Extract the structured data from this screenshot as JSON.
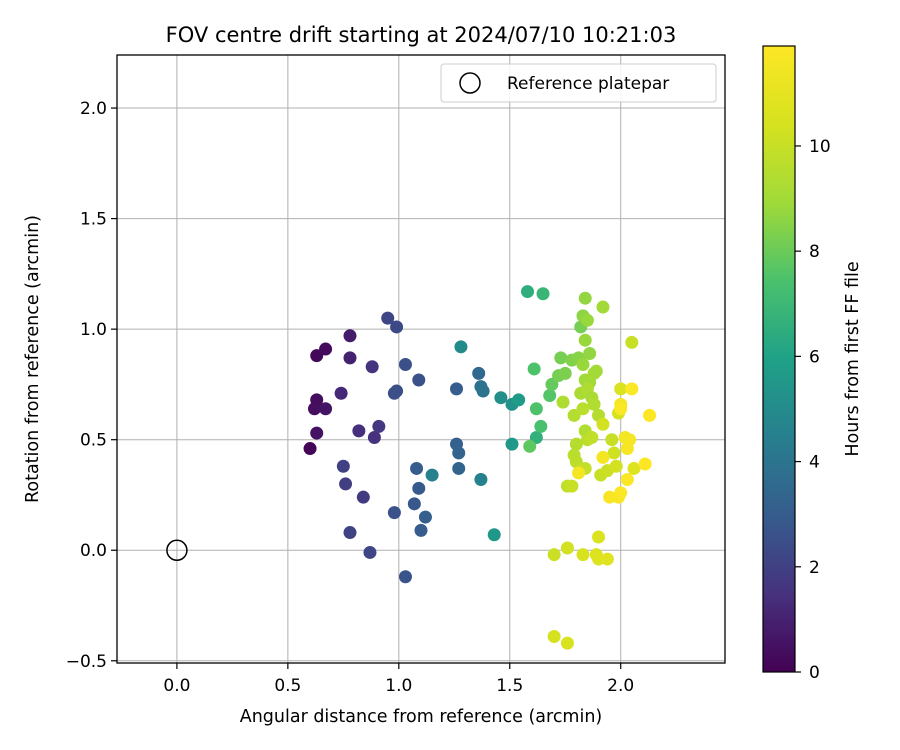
{
  "chart_data": {
    "type": "scatter",
    "title": "FOV centre drift starting at 2024/07/10 10:21:03",
    "xlabel": "Angular distance from reference (arcmin)",
    "ylabel": "Rotation from reference (arcmin)",
    "xlim": [
      -0.27,
      2.47
    ],
    "ylim": [
      -0.51,
      2.24
    ],
    "xticks": [
      0.0,
      0.5,
      1.0,
      1.5,
      2.0
    ],
    "xtick_labels": [
      "0.0",
      "0.5",
      "1.0",
      "1.5",
      "2.0"
    ],
    "yticks": [
      -0.5,
      0.0,
      0.5,
      1.0,
      1.5,
      2.0
    ],
    "ytick_labels": [
      "−0.5",
      "0.0",
      "0.5",
      "1.0",
      "1.5",
      "2.0"
    ],
    "grid": true,
    "legend": {
      "placement": "top-right",
      "entries": [
        "Reference platepar"
      ]
    },
    "reference_point": {
      "x": 0.0,
      "y": 0.0,
      "label": "Reference platepar"
    },
    "colorbar": {
      "label": "Hours from first FF file",
      "range": [
        0,
        11.9
      ],
      "ticks": [
        0,
        2,
        4,
        6,
        8,
        10
      ],
      "tick_labels": [
        "0",
        "2",
        "4",
        "6",
        "8",
        "10"
      ],
      "colormap": "viridis"
    },
    "points": [
      [
        0.6,
        0.46,
        0.1
      ],
      [
        0.63,
        0.88,
        0.2
      ],
      [
        0.67,
        0.91,
        0.3
      ],
      [
        0.63,
        0.68,
        0.35
      ],
      [
        0.62,
        0.64,
        0.4
      ],
      [
        0.63,
        0.53,
        0.5
      ],
      [
        0.67,
        0.64,
        0.6
      ],
      [
        0.78,
        0.97,
        0.8
      ],
      [
        0.78,
        0.87,
        1.0
      ],
      [
        0.74,
        0.71,
        1.2
      ],
      [
        0.82,
        0.54,
        1.4
      ],
      [
        0.89,
        0.51,
        1.5
      ],
      [
        0.88,
        0.83,
        1.6
      ],
      [
        0.91,
        0.56,
        1.7
      ],
      [
        0.84,
        0.24,
        1.8
      ],
      [
        0.76,
        0.3,
        1.9
      ],
      [
        0.75,
        0.38,
        2.0
      ],
      [
        0.78,
        0.08,
        2.1
      ],
      [
        0.87,
        -0.01,
        2.2
      ],
      [
        0.95,
        1.05,
        2.2
      ],
      [
        0.99,
        1.01,
        2.3
      ],
      [
        0.99,
        0.72,
        2.4
      ],
      [
        0.98,
        0.71,
        2.5
      ],
      [
        1.03,
        0.84,
        2.5
      ],
      [
        1.09,
        0.77,
        2.6
      ],
      [
        0.98,
        0.17,
        2.6
      ],
      [
        1.03,
        -0.12,
        2.7
      ],
      [
        1.07,
        0.21,
        2.8
      ],
      [
        1.09,
        0.28,
        2.9
      ],
      [
        1.08,
        0.37,
        3.0
      ],
      [
        1.1,
        0.09,
        3.0
      ],
      [
        1.12,
        0.15,
        3.1
      ],
      [
        1.15,
        0.34,
        4.5
      ],
      [
        1.26,
        0.73,
        3.0
      ],
      [
        1.26,
        0.48,
        3.2
      ],
      [
        1.27,
        0.44,
        3.3
      ],
      [
        1.27,
        0.37,
        3.3
      ],
      [
        1.36,
        0.8,
        3.5
      ],
      [
        1.37,
        0.74,
        3.9
      ],
      [
        1.38,
        0.72,
        4.0
      ],
      [
        1.37,
        0.32,
        4.5
      ],
      [
        1.28,
        0.92,
        5.0
      ],
      [
        1.43,
        0.07,
        5.5
      ],
      [
        1.46,
        0.69,
        5.1
      ],
      [
        1.51,
        0.66,
        5.3
      ],
      [
        1.51,
        0.48,
        5.6
      ],
      [
        1.54,
        0.68,
        5.7
      ],
      [
        1.58,
        1.17,
        6.5
      ],
      [
        1.65,
        1.16,
        6.9
      ],
      [
        1.62,
        0.51,
        6.6
      ],
      [
        1.61,
        0.82,
        7.5
      ],
      [
        1.62,
        0.64,
        7.5
      ],
      [
        1.64,
        0.56,
        7.4
      ],
      [
        1.59,
        0.47,
        7.8
      ],
      [
        1.68,
        0.7,
        7.6
      ],
      [
        1.69,
        0.75,
        7.9
      ],
      [
        1.72,
        0.79,
        8.2
      ],
      [
        1.73,
        0.87,
        8.2
      ],
      [
        1.75,
        0.8,
        8.3
      ],
      [
        1.78,
        0.86,
        8.4
      ],
      [
        1.81,
        0.87,
        8.5
      ],
      [
        1.82,
        1.01,
        8.2
      ],
      [
        1.84,
        1.14,
        8.7
      ],
      [
        1.83,
        1.06,
        8.6
      ],
      [
        1.85,
        1.04,
        8.8
      ],
      [
        1.84,
        0.95,
        8.8
      ],
      [
        1.86,
        0.89,
        8.7
      ],
      [
        1.83,
        0.84,
        8.8
      ],
      [
        1.84,
        0.77,
        8.9
      ],
      [
        1.86,
        0.76,
        9.0
      ],
      [
        1.88,
        0.8,
        9.1
      ],
      [
        1.89,
        0.81,
        9.0
      ],
      [
        1.82,
        0.71,
        9.2
      ],
      [
        1.85,
        0.73,
        9.3
      ],
      [
        1.87,
        0.69,
        9.2
      ],
      [
        1.88,
        0.66,
        9.4
      ],
      [
        1.9,
        0.61,
        9.5
      ],
      [
        1.92,
        1.1,
        9.0
      ],
      [
        1.74,
        0.67,
        9.3
      ],
      [
        1.79,
        0.61,
        9.5
      ],
      [
        1.83,
        0.64,
        9.6
      ],
      [
        1.84,
        0.54,
        9.4
      ],
      [
        1.85,
        0.5,
        9.7
      ],
      [
        1.87,
        0.51,
        9.8
      ],
      [
        1.8,
        0.48,
        9.5
      ],
      [
        1.79,
        0.43,
        9.6
      ],
      [
        1.8,
        0.4,
        9.7
      ],
      [
        1.84,
        0.37,
        9.9
      ],
      [
        1.91,
        0.34,
        10.0
      ],
      [
        1.94,
        0.36,
        10.1
      ],
      [
        1.96,
        0.5,
        10.0
      ],
      [
        1.97,
        0.44,
        10.2
      ],
      [
        1.98,
        0.38,
        10.3
      ],
      [
        1.99,
        0.62,
        10.4
      ],
      [
        1.92,
        0.57,
        10.3
      ],
      [
        1.76,
        0.29,
        9.8
      ],
      [
        1.78,
        0.29,
        10.0
      ],
      [
        1.7,
        -0.02,
        10.1
      ],
      [
        1.76,
        0.01,
        10.3
      ],
      [
        1.83,
        -0.02,
        10.5
      ],
      [
        1.89,
        -0.02,
        10.6
      ],
      [
        1.9,
        -0.04,
        10.7
      ],
      [
        1.94,
        -0.04,
        10.8
      ],
      [
        1.9,
        0.06,
        10.6
      ],
      [
        1.7,
        -0.39,
        10.4
      ],
      [
        1.76,
        -0.42,
        10.5
      ],
      [
        2.05,
        0.94,
        10.0
      ],
      [
        2.0,
        0.73,
        10.6
      ],
      [
        2.06,
        0.37,
        10.7
      ],
      [
        1.81,
        0.35,
        11.5
      ],
      [
        1.92,
        0.42,
        11.6
      ],
      [
        1.95,
        0.24,
        11.7
      ],
      [
        1.99,
        0.24,
        11.7
      ],
      [
        2.0,
        0.26,
        11.8
      ],
      [
        2.03,
        0.32,
        11.8
      ],
      [
        2.02,
        0.51,
        11.5
      ],
      [
        2.04,
        0.5,
        11.6
      ],
      [
        2.03,
        0.46,
        11.7
      ],
      [
        2.05,
        0.73,
        11.8
      ],
      [
        2.0,
        0.66,
        11.6
      ],
      [
        2.0,
        0.64,
        11.8
      ],
      [
        2.11,
        0.39,
        11.9
      ],
      [
        2.13,
        0.61,
        11.9
      ]
    ]
  }
}
